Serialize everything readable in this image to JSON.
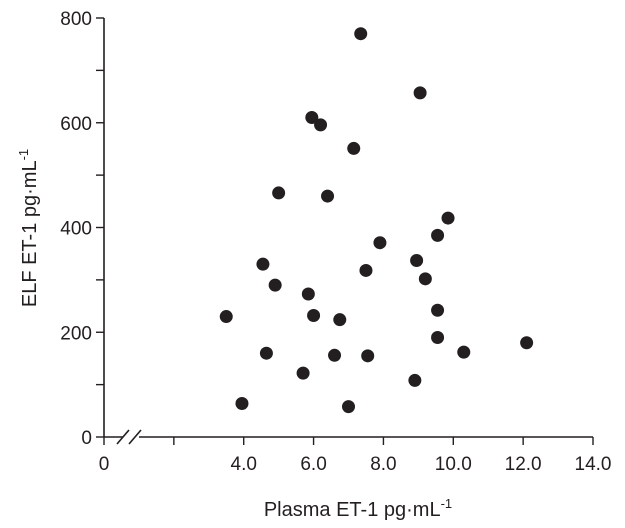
{
  "chart_data": {
    "type": "scatter",
    "xlabel": "Plasma ET-1  pg·mL",
    "xlabel_sup": "-1",
    "ylabel": "ELF ET-1  pg·mL",
    "ylabel_sup": "-1",
    "xlim": [
      0,
      14
    ],
    "ylim": [
      0,
      800
    ],
    "x_axis_break": true,
    "x_ticks": [
      0,
      2,
      4,
      6,
      8,
      10,
      12,
      14
    ],
    "x_tick_labels": [
      "0",
      "",
      "4.0",
      "6.0",
      "8.0",
      "10.0",
      "12.0",
      "14.0"
    ],
    "y_ticks": [
      0,
      100,
      200,
      300,
      400,
      500,
      600,
      700,
      800
    ],
    "y_tick_labels": [
      "0",
      "",
      "200",
      "",
      "400",
      "",
      "600",
      "",
      "800"
    ],
    "grid": false,
    "marker_color": "#231f20",
    "points": [
      {
        "x": 3.5,
        "y": 230
      },
      {
        "x": 3.95,
        "y": 64
      },
      {
        "x": 4.55,
        "y": 330
      },
      {
        "x": 4.65,
        "y": 160
      },
      {
        "x": 4.9,
        "y": 290
      },
      {
        "x": 5.0,
        "y": 466
      },
      {
        "x": 5.7,
        "y": 122
      },
      {
        "x": 5.85,
        "y": 273
      },
      {
        "x": 5.95,
        "y": 610
      },
      {
        "x": 6.0,
        "y": 232
      },
      {
        "x": 6.2,
        "y": 596
      },
      {
        "x": 6.4,
        "y": 460
      },
      {
        "x": 6.6,
        "y": 156
      },
      {
        "x": 6.75,
        "y": 224
      },
      {
        "x": 7.0,
        "y": 58
      },
      {
        "x": 7.15,
        "y": 551
      },
      {
        "x": 7.35,
        "y": 770
      },
      {
        "x": 7.5,
        "y": 318
      },
      {
        "x": 7.55,
        "y": 155
      },
      {
        "x": 7.9,
        "y": 371
      },
      {
        "x": 8.9,
        "y": 108
      },
      {
        "x": 8.95,
        "y": 337
      },
      {
        "x": 9.05,
        "y": 657
      },
      {
        "x": 9.2,
        "y": 302
      },
      {
        "x": 9.55,
        "y": 385
      },
      {
        "x": 9.55,
        "y": 242
      },
      {
        "x": 9.55,
        "y": 190
      },
      {
        "x": 9.85,
        "y": 418
      },
      {
        "x": 10.3,
        "y": 162
      },
      {
        "x": 12.1,
        "y": 180
      }
    ]
  }
}
